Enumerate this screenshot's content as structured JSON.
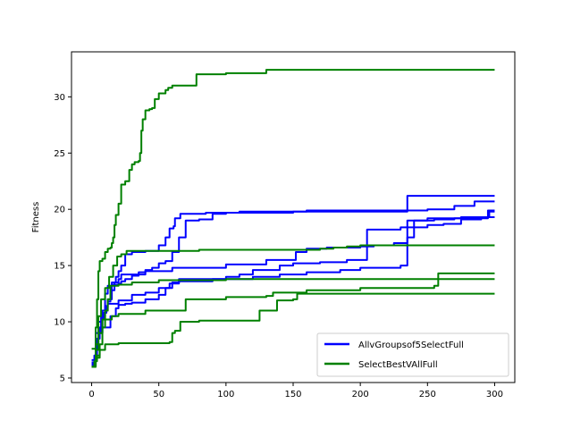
{
  "chart_data": {
    "type": "line",
    "title": "",
    "xlabel": "",
    "ylabel": "Fitness",
    "xlim": [
      -15,
      315
    ],
    "ylim": [
      4.6,
      34.0
    ],
    "xticks": [
      0,
      50,
      100,
      150,
      200,
      250,
      300
    ],
    "yticks": [
      5,
      10,
      15,
      20,
      25,
      30
    ],
    "grid": false,
    "legend_position": "lower-right",
    "legend": [
      {
        "label": "AllvGroupsof5SelectFull",
        "color": "#0000ff"
      },
      {
        "label": "SelectBestVAllFull",
        "color": "#008000"
      }
    ],
    "series": [
      {
        "group": "AllvGroupsof5SelectFull",
        "color": "#0000ff",
        "points": [
          [
            0,
            6.2
          ],
          [
            2,
            7.0
          ],
          [
            4,
            8.5
          ],
          [
            6,
            9.5
          ],
          [
            8,
            10.2
          ],
          [
            9,
            10.8
          ],
          [
            11,
            11.3
          ],
          [
            12,
            11.8
          ],
          [
            14,
            12.8
          ],
          [
            17,
            13.5
          ],
          [
            20,
            13.8
          ],
          [
            22,
            14.2
          ],
          [
            40,
            14.5
          ],
          [
            60,
            14.8
          ],
          [
            100,
            15.1
          ],
          [
            130,
            15.5
          ],
          [
            152,
            16.2
          ],
          [
            160,
            16.5
          ],
          [
            175,
            16.6
          ],
          [
            200,
            16.7
          ],
          [
            210,
            16.8
          ],
          [
            225,
            17.0
          ],
          [
            235,
            19.0
          ],
          [
            250,
            19.2
          ],
          [
            275,
            19.3
          ],
          [
            300,
            19.3
          ]
        ]
      },
      {
        "group": "AllvGroupsof5SelectFull",
        "color": "#0000ff",
        "points": [
          [
            0,
            6.4
          ],
          [
            3,
            8.0
          ],
          [
            5,
            9.0
          ],
          [
            8,
            9.5
          ],
          [
            14,
            10.5
          ],
          [
            18,
            11.2
          ],
          [
            20,
            11.5
          ],
          [
            25,
            11.6
          ],
          [
            30,
            11.7
          ],
          [
            40,
            12.0
          ],
          [
            50,
            12.4
          ],
          [
            55,
            13.0
          ],
          [
            58,
            13.4
          ],
          [
            65,
            13.6
          ],
          [
            90,
            13.8
          ],
          [
            120,
            14.0
          ],
          [
            140,
            14.2
          ],
          [
            160,
            14.4
          ],
          [
            185,
            14.6
          ],
          [
            200,
            14.8
          ],
          [
            230,
            15.0
          ],
          [
            235,
            17.5
          ],
          [
            240,
            19.0
          ],
          [
            255,
            19.1
          ],
          [
            270,
            19.2
          ],
          [
            290,
            19.3
          ],
          [
            296,
            19.8
          ],
          [
            300,
            19.8
          ]
        ]
      },
      {
        "group": "AllvGroupsof5SelectFull",
        "color": "#0000ff",
        "points": [
          [
            0,
            6.6
          ],
          [
            3,
            9.0
          ],
          [
            5,
            10.0
          ],
          [
            8,
            10.7
          ],
          [
            10,
            11.4
          ],
          [
            12,
            11.6
          ],
          [
            20,
            11.9
          ],
          [
            30,
            12.4
          ],
          [
            40,
            12.6
          ],
          [
            50,
            13.0
          ],
          [
            60,
            13.5
          ],
          [
            65,
            13.8
          ],
          [
            100,
            14.0
          ],
          [
            110,
            14.2
          ],
          [
            120,
            14.6
          ],
          [
            140,
            15.0
          ],
          [
            150,
            15.2
          ],
          [
            170,
            15.3
          ],
          [
            190,
            15.5
          ],
          [
            205,
            18.2
          ],
          [
            230,
            18.4
          ],
          [
            250,
            18.6
          ],
          [
            262,
            18.7
          ],
          [
            275,
            19.1
          ],
          [
            290,
            19.2
          ],
          [
            295,
            19.9
          ],
          [
            300,
            19.9
          ]
        ]
      },
      {
        "group": "AllvGroupsof5SelectFull",
        "color": "#0000ff",
        "points": [
          [
            0,
            6.1
          ],
          [
            3,
            7.5
          ],
          [
            5,
            9.0
          ],
          [
            7,
            10.5
          ],
          [
            10,
            12.5
          ],
          [
            12,
            13.2
          ],
          [
            15,
            13.3
          ],
          [
            20,
            13.4
          ],
          [
            22,
            13.6
          ],
          [
            25,
            13.8
          ],
          [
            30,
            14.1
          ],
          [
            35,
            14.4
          ],
          [
            40,
            14.6
          ],
          [
            45,
            14.8
          ],
          [
            50,
            15.2
          ],
          [
            55,
            15.4
          ],
          [
            60,
            16.2
          ],
          [
            65,
            17.5
          ],
          [
            70,
            19.0
          ],
          [
            80,
            19.1
          ],
          [
            90,
            19.6
          ],
          [
            100,
            19.7
          ],
          [
            150,
            19.8
          ],
          [
            200,
            19.8
          ],
          [
            235,
            21.2
          ],
          [
            260,
            21.2
          ],
          [
            300,
            21.2
          ]
        ]
      },
      {
        "group": "AllvGroupsof5SelectFull",
        "color": "#0000ff",
        "points": [
          [
            0,
            6.3
          ],
          [
            3,
            7.8
          ],
          [
            5,
            9.0
          ],
          [
            8,
            11.0
          ],
          [
            12,
            12.0
          ],
          [
            15,
            13.5
          ],
          [
            18,
            14.0
          ],
          [
            20,
            14.5
          ],
          [
            22,
            15.0
          ],
          [
            25,
            16.0
          ],
          [
            30,
            16.2
          ],
          [
            40,
            16.3
          ],
          [
            50,
            16.8
          ],
          [
            55,
            17.5
          ],
          [
            58,
            18.3
          ],
          [
            61,
            18.5
          ],
          [
            62,
            19.2
          ],
          [
            66,
            19.6
          ],
          [
            85,
            19.7
          ],
          [
            110,
            19.8
          ],
          [
            150,
            19.8
          ],
          [
            160,
            19.9
          ],
          [
            215,
            19.9
          ],
          [
            250,
            20.0
          ],
          [
            270,
            20.3
          ],
          [
            285,
            20.7
          ],
          [
            300,
            20.7
          ]
        ]
      },
      {
        "group": "SelectBestVAllFull",
        "color": "#008000",
        "points": [
          [
            0,
            7.6
          ],
          [
            3,
            9.5
          ],
          [
            4,
            12.0
          ],
          [
            5,
            14.5
          ],
          [
            6,
            15.4
          ],
          [
            8,
            15.6
          ],
          [
            10,
            16.2
          ],
          [
            12,
            16.5
          ],
          [
            14,
            16.6
          ],
          [
            15,
            17.0
          ],
          [
            16,
            17.5
          ],
          [
            17,
            18.6
          ],
          [
            18,
            19.5
          ],
          [
            20,
            20.5
          ],
          [
            22,
            22.2
          ],
          [
            25,
            22.5
          ],
          [
            28,
            23.5
          ],
          [
            30,
            24.0
          ],
          [
            32,
            24.2
          ],
          [
            35,
            24.3
          ],
          [
            36,
            25.0
          ],
          [
            37,
            27.0
          ],
          [
            38,
            28.0
          ],
          [
            40,
            28.8
          ],
          [
            43,
            28.9
          ],
          [
            45,
            29.0
          ],
          [
            47,
            29.8
          ],
          [
            50,
            30.3
          ],
          [
            55,
            30.6
          ],
          [
            57,
            30.8
          ],
          [
            60,
            31.0
          ],
          [
            75,
            31.0
          ],
          [
            78,
            32.0
          ],
          [
            100,
            32.1
          ],
          [
            130,
            32.4
          ],
          [
            200,
            32.4
          ],
          [
            300,
            32.4
          ]
        ]
      },
      {
        "group": "SelectBestVAllFull",
        "color": "#008000",
        "points": [
          [
            0,
            6.0
          ],
          [
            3,
            8.0
          ],
          [
            5,
            10.5
          ],
          [
            7,
            12.0
          ],
          [
            10,
            13.0
          ],
          [
            13,
            14.0
          ],
          [
            16,
            15.0
          ],
          [
            19,
            15.8
          ],
          [
            22,
            16.0
          ],
          [
            26,
            16.3
          ],
          [
            60,
            16.3
          ],
          [
            80,
            16.4
          ],
          [
            120,
            16.4
          ],
          [
            170,
            16.5
          ],
          [
            180,
            16.6
          ],
          [
            190,
            16.7
          ],
          [
            200,
            16.8
          ],
          [
            300,
            16.8
          ]
        ]
      },
      {
        "group": "SelectBestVAllFull",
        "color": "#008000",
        "points": [
          [
            0,
            6.0
          ],
          [
            3,
            7.5
          ],
          [
            5,
            9.0
          ],
          [
            8,
            10.2
          ],
          [
            15,
            10.5
          ],
          [
            20,
            10.7
          ],
          [
            35,
            10.7
          ],
          [
            40,
            11.0
          ],
          [
            65,
            11.0
          ],
          [
            70,
            12.0
          ],
          [
            100,
            12.2
          ],
          [
            130,
            12.3
          ],
          [
            135,
            12.6
          ],
          [
            160,
            12.8
          ],
          [
            200,
            13.0
          ],
          [
            255,
            13.2
          ],
          [
            258,
            14.3
          ],
          [
            300,
            14.3
          ]
        ]
      },
      {
        "group": "SelectBestVAllFull",
        "color": "#008000",
        "points": [
          [
            0,
            6.0
          ],
          [
            2,
            6.5
          ],
          [
            4,
            7.0
          ],
          [
            6,
            8.0
          ],
          [
            8,
            9.5
          ],
          [
            10,
            11.0
          ],
          [
            12,
            12.0
          ],
          [
            14,
            13.2
          ],
          [
            20,
            13.3
          ],
          [
            25,
            13.3
          ],
          [
            30,
            13.5
          ],
          [
            45,
            13.5
          ],
          [
            50,
            13.7
          ],
          [
            100,
            13.8
          ],
          [
            300,
            13.8
          ]
        ]
      },
      {
        "group": "SelectBestVAllFull",
        "color": "#008000",
        "points": [
          [
            0,
            6.0
          ],
          [
            3,
            6.8
          ],
          [
            6,
            7.5
          ],
          [
            10,
            8.0
          ],
          [
            20,
            8.1
          ],
          [
            58,
            8.2
          ],
          [
            60,
            9.0
          ],
          [
            62,
            9.2
          ],
          [
            66,
            10.0
          ],
          [
            80,
            10.1
          ],
          [
            120,
            10.1
          ],
          [
            125,
            11.0
          ],
          [
            138,
            11.9
          ],
          [
            150,
            12.0
          ],
          [
            153,
            12.5
          ],
          [
            300,
            12.5
          ]
        ]
      }
    ]
  }
}
